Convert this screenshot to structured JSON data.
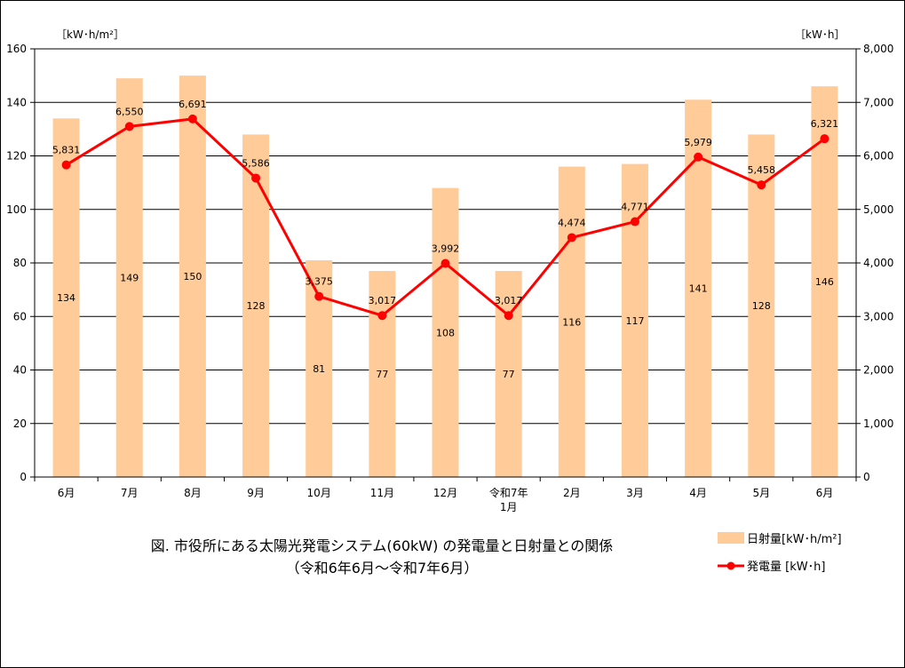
{
  "chart_data": {
    "type": "bar+line",
    "title": "図. 市役所にある太陽光発電システム(60kW) の発電量と日射量との関係",
    "subtitle": "（令和6年6月〜令和7年6月）",
    "categories": [
      [
        "6月"
      ],
      [
        "7月"
      ],
      [
        "8月"
      ],
      [
        "9月"
      ],
      [
        "10月"
      ],
      [
        "11月"
      ],
      [
        "12月"
      ],
      [
        "令和7年",
        "1月"
      ],
      [
        "2月"
      ],
      [
        "3月"
      ],
      [
        "4月"
      ],
      [
        "5月"
      ],
      [
        "6月"
      ]
    ],
    "y_left": {
      "unit": "［kW･h/m²］",
      "min": 0,
      "max": 160,
      "step": 20
    },
    "y_right": {
      "unit": "［kW･h］",
      "min": 0,
      "max": 8000,
      "step": 1000
    },
    "grid": true,
    "legend_position": "bottom-right",
    "series": [
      {
        "name": "日射量[kW･h/m²]",
        "kind": "bar",
        "axis": "left",
        "color": "#FFCC99",
        "values": [
          134,
          149,
          150,
          128,
          81,
          77,
          108,
          77,
          116,
          117,
          141,
          128,
          146
        ],
        "labels": [
          "134",
          "149",
          "150",
          "128",
          "81",
          "77",
          "108",
          "77",
          "116",
          "117",
          "141",
          "128",
          "146"
        ]
      },
      {
        "name": "発電量 [kW･h]",
        "kind": "line",
        "axis": "right",
        "color": "#FF0000",
        "values": [
          5831,
          6550,
          6691,
          5586,
          3375,
          3017,
          3992,
          3017,
          4474,
          4771,
          5979,
          5458,
          6321
        ],
        "labels": [
          "5,831",
          "6,550",
          "6,691",
          "5,586",
          "3,375",
          "3,017",
          "3,992",
          "3,017",
          "4,474",
          "4,771",
          "5,979",
          "5,458",
          "6,321"
        ]
      }
    ]
  }
}
